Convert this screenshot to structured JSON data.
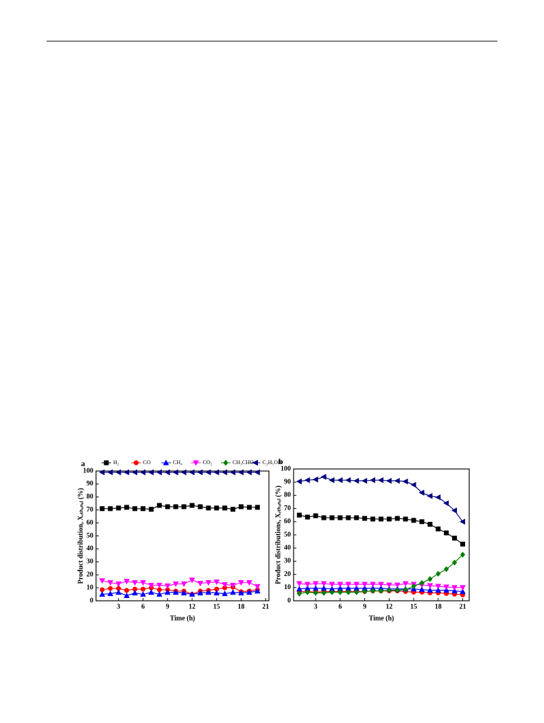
{
  "chart_data": [
    {
      "type": "line",
      "panel": "a",
      "xlabel": "Time (h)",
      "ylabel": "Product distribution, Xₑₜₕₐₙₒₗ (%)",
      "x": [
        1,
        2,
        3,
        4,
        5,
        6,
        7,
        8,
        9,
        10,
        11,
        12,
        13,
        14,
        15,
        16,
        17,
        18,
        19,
        20
      ],
      "xlim": [
        0.25,
        21.4
      ],
      "xticks": [
        3,
        6,
        9,
        12,
        15,
        18,
        21
      ],
      "ylim": [
        0,
        100
      ],
      "yticks": [
        0,
        10,
        20,
        30,
        40,
        50,
        60,
        70,
        80,
        90,
        100
      ],
      "legend": "top",
      "series": [
        {
          "name": "H₂",
          "color": "#000000",
          "marker": "square",
          "values": [
            71,
            71,
            71.5,
            72,
            71,
            71,
            70.5,
            73.5,
            72.5,
            72.5,
            72.5,
            73.5,
            72.5,
            71.5,
            71.5,
            71.5,
            70.5,
            72.5,
            72,
            72
          ]
        },
        {
          "name": "CO",
          "color": "#ff0000",
          "marker": "circle",
          "values": [
            8.5,
            9.5,
            9.5,
            8,
            9,
            9,
            10,
            8.5,
            8.5,
            7.5,
            7.5,
            5,
            7.5,
            8,
            9,
            10,
            10.5,
            7,
            7.5,
            8.5
          ]
        },
        {
          "name": "CH₄",
          "color": "#0000ff",
          "marker": "up",
          "values": [
            5,
            5.5,
            6.5,
            4,
            6,
            5,
            6.5,
            5,
            6.5,
            6.5,
            6,
            5,
            6,
            6.5,
            6,
            5.5,
            6.5,
            6,
            6.5,
            7.5
          ]
        },
        {
          "name": "CO₂",
          "color": "#ff00ff",
          "marker": "down",
          "values": [
            15.5,
            14,
            13,
            15,
            14,
            14,
            12,
            12,
            11.5,
            13,
            13,
            16,
            13.5,
            14,
            14.5,
            12.5,
            12,
            14,
            14,
            11
          ]
        },
        {
          "name": "CH₃CHO",
          "color": "#008000",
          "marker": "diamond",
          "values": [
            null,
            null,
            null,
            null,
            null,
            null,
            null,
            null,
            null,
            null,
            null,
            null,
            null,
            null,
            null,
            null,
            null,
            null,
            null,
            null
          ]
        },
        {
          "name": "C₂H₅OH",
          "color": "#000080",
          "marker": "left",
          "values": [
            99,
            99,
            99,
            99,
            99,
            99,
            99,
            99,
            99,
            99,
            99,
            99,
            99,
            99,
            99,
            99,
            99,
            99,
            99,
            99
          ]
        }
      ]
    },
    {
      "type": "line",
      "panel": "b",
      "xlabel": "Time (h)",
      "ylabel": "Product distributions, Xₑₜₕₐₙₒₗ (%)",
      "x": [
        1,
        2,
        3,
        4,
        5,
        6,
        7,
        8,
        9,
        10,
        11,
        12,
        13,
        14,
        15,
        16,
        17,
        18,
        19,
        20,
        21
      ],
      "xlim": [
        0.3,
        21.8
      ],
      "xticks": [
        3,
        6,
        9,
        12,
        15,
        18,
        21
      ],
      "ylim": [
        0,
        100
      ],
      "yticks": [
        0,
        10,
        20,
        30,
        40,
        50,
        60,
        70,
        80,
        90,
        100
      ],
      "series": [
        {
          "name": "H₂",
          "color": "#000000",
          "marker": "square",
          "values": [
            65,
            63.5,
            64.5,
            63,
            63,
            63,
            63,
            63,
            62.5,
            62,
            62,
            62,
            62.5,
            62,
            61,
            60,
            58,
            54.5,
            51.5,
            47.5,
            43
          ]
        },
        {
          "name": "CO",
          "color": "#ff0000",
          "marker": "circle",
          "values": [
            7,
            7,
            6.5,
            7,
            7,
            7,
            7,
            7,
            7,
            7.5,
            7.5,
            7.5,
            7.5,
            7,
            6.5,
            6.5,
            6,
            6,
            5.5,
            5,
            4.5
          ]
        },
        {
          "name": "CH₄",
          "color": "#0000ff",
          "marker": "up",
          "values": [
            9,
            9.5,
            9.5,
            9.5,
            9,
            9.5,
            9.5,
            9.5,
            9.5,
            9.5,
            9.5,
            9,
            9,
            9,
            9,
            8.5,
            8,
            8,
            8,
            7.5,
            7
          ]
        },
        {
          "name": "CO₂",
          "color": "#ff00ff",
          "marker": "down",
          "values": [
            13,
            12.5,
            13,
            13,
            12.5,
            12.5,
            12.5,
            12.5,
            12.5,
            12.5,
            12.5,
            12,
            12,
            13,
            12.5,
            12,
            11.5,
            11,
            10.5,
            10,
            10
          ]
        },
        {
          "name": "CH₃CHO",
          "color": "#008000",
          "marker": "diamond",
          "values": [
            5.5,
            6.5,
            6,
            6,
            6.5,
            6.5,
            6.5,
            6.5,
            7,
            7.5,
            7.5,
            8,
            8,
            8.5,
            11,
            13.5,
            16.5,
            20.5,
            24,
            29,
            35
          ]
        },
        {
          "name": "C₂H₅OH",
          "color": "#000080",
          "marker": "left",
          "values": [
            90.5,
            91.5,
            92,
            94,
            91.5,
            91.5,
            91.5,
            91,
            91,
            91.5,
            91.5,
            91,
            91,
            90.5,
            88,
            82,
            79.5,
            78.5,
            74,
            68.5,
            60
          ]
        }
      ]
    }
  ]
}
